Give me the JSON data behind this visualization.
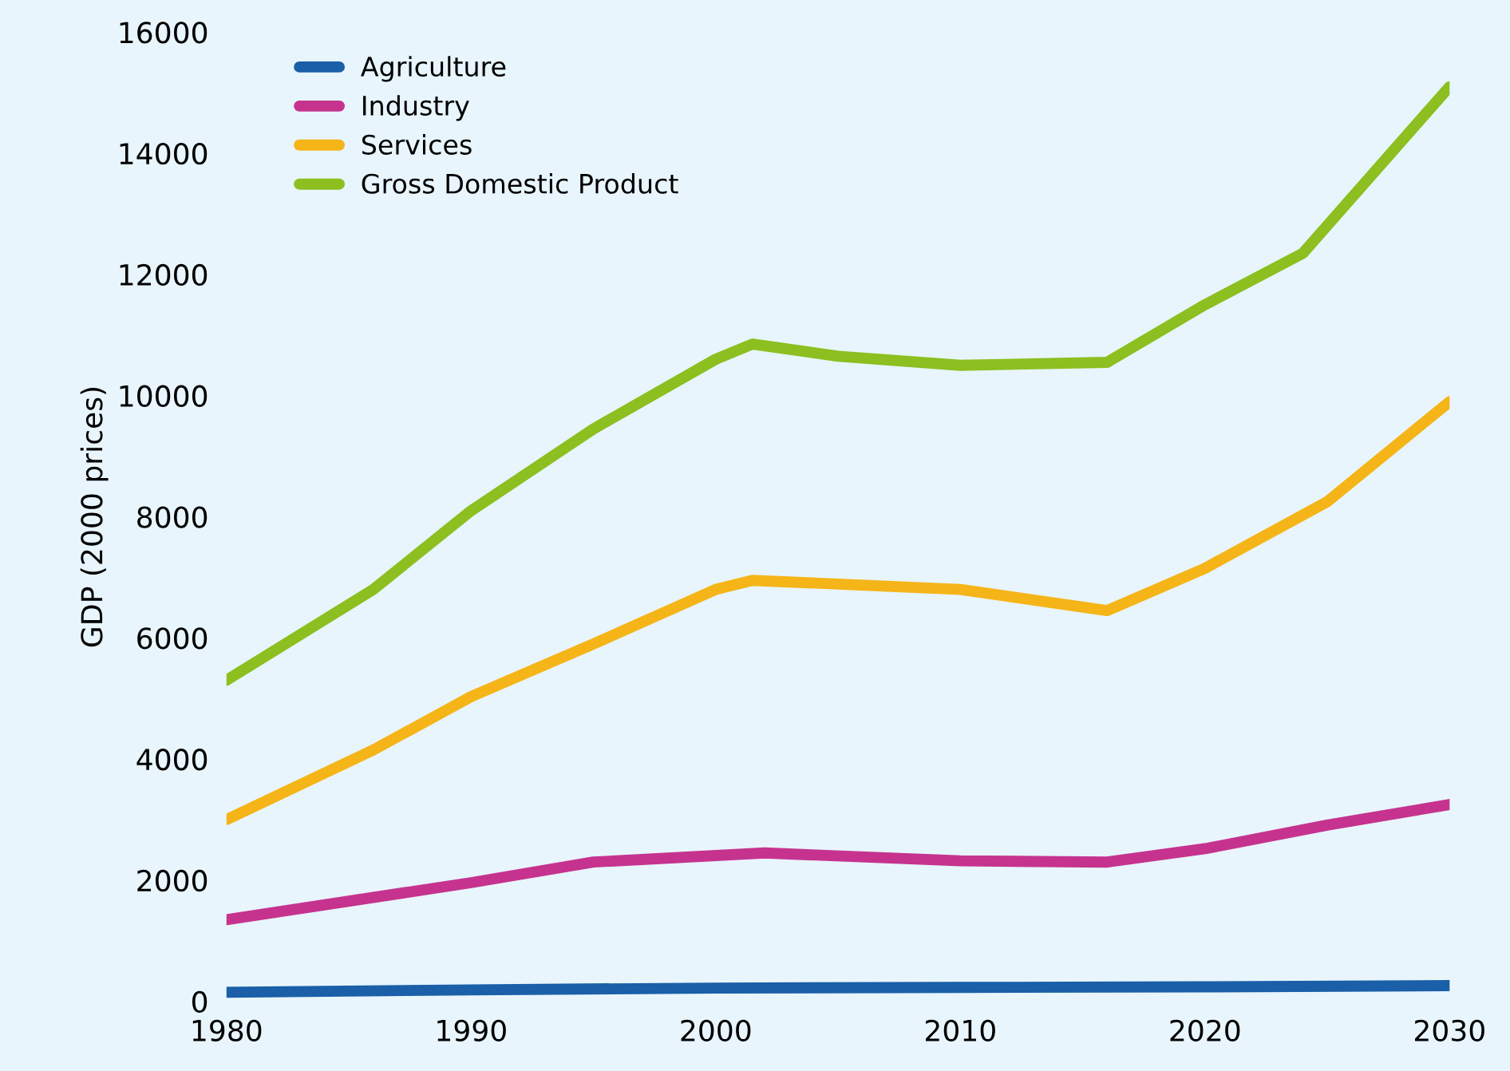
{
  "chart_data": {
    "type": "line",
    "ylabel": "GDP (2000 prices)",
    "ylim": [
      0,
      16000
    ],
    "yticks": [
      0,
      2000,
      4000,
      6000,
      8000,
      10000,
      12000,
      14000,
      16000
    ],
    "xlim": [
      1980,
      2030
    ],
    "xticks": [
      1980,
      1990,
      2000,
      2010,
      2020,
      2030
    ],
    "legend": "top left",
    "grid": false,
    "line_style": "solid",
    "series": [
      {
        "name": "Agriculture",
        "color": "#1a5fa8",
        "x": [
          1980,
          1990,
          2000,
          2010,
          2020,
          2030
        ],
        "values": [
          150,
          190,
          220,
          230,
          240,
          260
        ]
      },
      {
        "name": "Industry",
        "color": "#c6338f",
        "x": [
          1980,
          1990,
          1995,
          2002,
          2010,
          2016,
          2020,
          2025,
          2030
        ],
        "values": [
          1350,
          1960,
          2300,
          2450,
          2320,
          2300,
          2520,
          2910,
          3250
        ]
      },
      {
        "name": "Services",
        "color": "#f5b518",
        "x": [
          1980,
          1986,
          1990,
          1995,
          2000,
          2001.5,
          2010,
          2016,
          2020,
          2025,
          2030
        ],
        "values": [
          3000,
          4150,
          5030,
          5900,
          6800,
          6950,
          6800,
          6450,
          7150,
          8250,
          9900
        ]
      },
      {
        "name": "Gross Domestic Product",
        "color": "#8cbf1f",
        "x": [
          1980,
          1986,
          1990,
          1995,
          2000,
          2001.5,
          2005,
          2010,
          2016,
          2020,
          2024,
          2030
        ],
        "values": [
          5300,
          6800,
          8100,
          9450,
          10600,
          10850,
          10650,
          10500,
          10550,
          11500,
          12350,
          15100
        ]
      }
    ]
  }
}
